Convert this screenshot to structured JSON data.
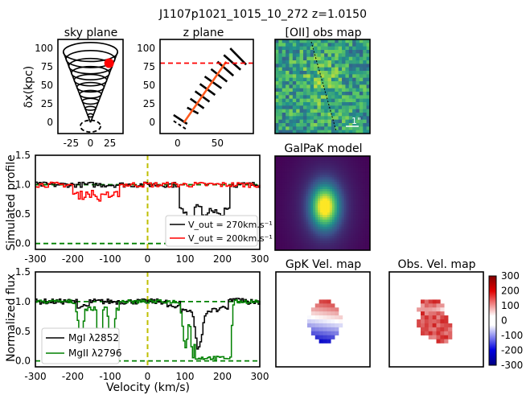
{
  "figure": {
    "suptitle": "J1107p1021_1015_10_272 z=1.0150"
  },
  "colors": {
    "black": "#000000",
    "red": "#ff0000",
    "green": "#008000",
    "orange": "#ff5a1e",
    "yellow_line": "#bfbf00",
    "dash_green": "#008000"
  },
  "chart_data": [
    {
      "id": "sky_plane",
      "type": "diagram",
      "title": "sky plane",
      "ylabel": "δx(kpc)",
      "xlim": [
        -42,
        42
      ],
      "ylim": [
        -15,
        112
      ],
      "xticks": [
        -25,
        0,
        25
      ],
      "yticks": [
        0,
        25,
        50,
        75,
        100
      ],
      "cone": {
        "apex": [
          0,
          0
        ],
        "top_y": 95,
        "top_halfwidth": 35,
        "rings": 10
      },
      "disk_ellipse": {
        "cx": 0,
        "cy": -5,
        "rx": 13,
        "ry": 8
      },
      "marker": {
        "x": 24,
        "y": 80,
        "r": 6,
        "color": "#ff0000"
      }
    },
    {
      "id": "z_plane",
      "type": "diagram",
      "title": "z plane",
      "xlim": [
        -22,
        95
      ],
      "ylim": [
        -15,
        112
      ],
      "xticks": [
        0,
        50
      ],
      "yticks": [
        0,
        25,
        50,
        75,
        100
      ],
      "hline_y": 80,
      "sightline": {
        "x0": 8,
        "y0": 0,
        "x1": 61,
        "y1": 82
      },
      "segments": [
        [
          -5,
          10,
          12,
          -2
        ],
        [
          12,
          20,
          26,
          12
        ],
        [
          16,
          32,
          33,
          19
        ],
        [
          22,
          42,
          40,
          28
        ],
        [
          28,
          52,
          47,
          37
        ],
        [
          34,
          62,
          55,
          46
        ],
        [
          42,
          72,
          62,
          55
        ],
        [
          50,
          82,
          70,
          63
        ],
        [
          58,
          91,
          79,
          71
        ],
        [
          66,
          100,
          86,
          78
        ]
      ]
    },
    {
      "id": "oii_map",
      "type": "heatmap",
      "title": "[OII] obs map",
      "annotation": "1\""
    },
    {
      "id": "galpak_model",
      "type": "heatmap",
      "title": "GalPaK model"
    },
    {
      "id": "simulated_profile",
      "type": "line",
      "ylabel": "Simulated profile",
      "xlim": [
        -300,
        300
      ],
      "ylim": [
        -0.1,
        1.5
      ],
      "xticks": [
        -300,
        -200,
        -100,
        0,
        100,
        200,
        300
      ],
      "yticks": [
        "0.0",
        "0.5",
        "1.0",
        "1.5"
      ],
      "vline_x": 0,
      "hlines": [
        1.0,
        0.0
      ],
      "legend_position": "lower-right",
      "series": [
        {
          "name": "V_out = 270km.s⁻¹",
          "color": "#000000",
          "absorption": [
            [
              90,
              0.58
            ],
            [
              110,
              0.45
            ],
            [
              130,
              0.6
            ],
            [
              150,
              0.5
            ],
            [
              170,
              0.55
            ],
            [
              190,
              0.47
            ],
            [
              210,
              0.6
            ]
          ],
          "abs_range": [
            85,
            215
          ]
        },
        {
          "name": "V_out = 200km.s⁻¹",
          "color": "#ff0000",
          "absorption": [
            [
              -190,
              0.82
            ],
            [
              -160,
              0.85
            ],
            [
              -130,
              0.78
            ],
            [
              -110,
              0.82
            ],
            [
              -85,
              0.83
            ]
          ],
          "abs_range": [
            -200,
            -80
          ]
        }
      ]
    },
    {
      "id": "normalized_flux",
      "type": "line",
      "ylabel": "Normalized flux",
      "xlabel": "Velocity (km/s)",
      "xlim": [
        -300,
        300
      ],
      "ylim": [
        -0.1,
        1.5
      ],
      "xticks": [
        -300,
        -200,
        -100,
        0,
        100,
        200,
        300
      ],
      "yticks": [
        "0.0",
        "0.5",
        "1.0",
        "1.5"
      ],
      "vline_x": 0,
      "hlines": [
        1.0,
        0.0
      ],
      "legend_position": "lower-left",
      "series": [
        {
          "name": "MgI λ2852",
          "color": "#000000"
        },
        {
          "name": "MgII λ2796",
          "color": "#008000"
        }
      ]
    },
    {
      "id": "gpk_vel_map",
      "type": "heatmap",
      "title": "GpK Vel. map"
    },
    {
      "id": "obs_vel_map",
      "type": "heatmap",
      "title": "Obs. Vel. map",
      "colorbar_ticks": [
        300,
        200,
        100,
        0,
        -100,
        -200,
        -300
      ]
    }
  ]
}
